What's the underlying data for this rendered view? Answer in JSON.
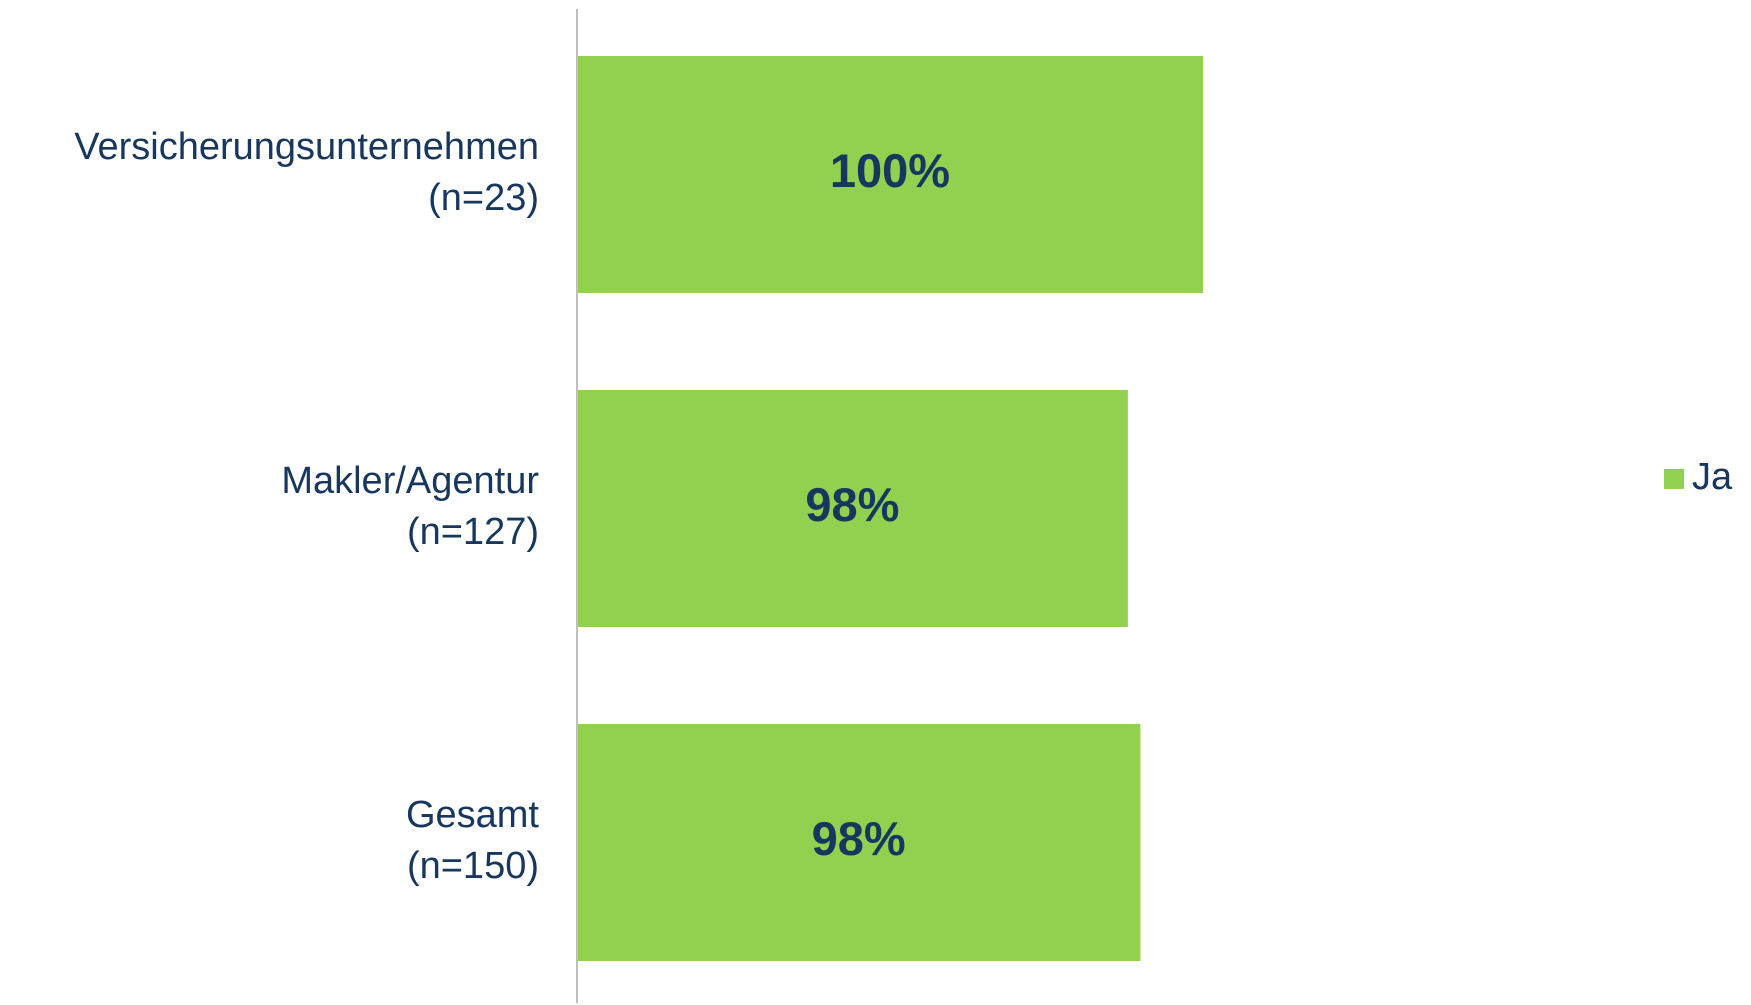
{
  "chart_data": {
    "type": "hbar",
    "categories": [
      [
        "Versicherungsunternehmen",
        "(n=23)"
      ],
      [
        "Makler/Agentur",
        "(n=127)"
      ],
      [
        "Gesamt",
        "(n=150)"
      ]
    ],
    "series": [
      {
        "name": "Ja",
        "color": "#92d050",
        "values": [
          100,
          97.6,
          98.0
        ],
        "value_labels": [
          "100%",
          "98%",
          "98%"
        ]
      }
    ],
    "xlim": [
      80,
      110
    ],
    "legend": "right"
  }
}
